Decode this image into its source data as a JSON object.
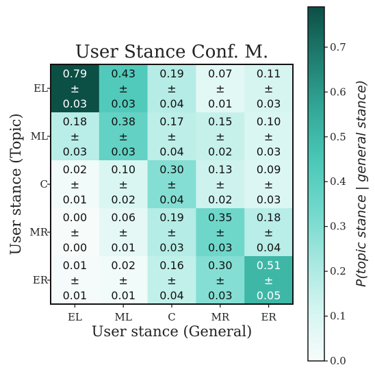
{
  "chart_data": {
    "type": "heatmap",
    "title": "User Stance Conf. M.",
    "xlabel": "User stance (General)",
    "ylabel": "User stance (Topic)",
    "x_categories": [
      "EL",
      "ML",
      "C",
      "MR",
      "ER"
    ],
    "y_categories": [
      "EL",
      "ML",
      "C",
      "MR",
      "ER"
    ],
    "values": [
      [
        0.79,
        0.43,
        0.19,
        0.07,
        0.11
      ],
      [
        0.18,
        0.38,
        0.17,
        0.15,
        0.1
      ],
      [
        0.02,
        0.1,
        0.3,
        0.13,
        0.09
      ],
      [
        0.0,
        0.06,
        0.19,
        0.35,
        0.18
      ],
      [
        0.01,
        0.02,
        0.16,
        0.3,
        0.51
      ]
    ],
    "errors": [
      [
        0.03,
        0.03,
        0.04,
        0.01,
        0.03
      ],
      [
        0.03,
        0.03,
        0.04,
        0.02,
        0.03
      ],
      [
        0.01,
        0.02,
        0.04,
        0.02,
        0.03
      ],
      [
        0.0,
        0.01,
        0.03,
        0.03,
        0.04
      ],
      [
        0.01,
        0.01,
        0.04,
        0.03,
        0.05
      ]
    ],
    "cell_labels": [
      [
        "0.79",
        "0.43",
        "0.19",
        "0.07",
        "0.11"
      ],
      [
        "0.18",
        "0.38",
        "0.17",
        "0.15",
        "0.10"
      ],
      [
        "0.02",
        "0.10",
        "0.30",
        "0.13",
        "0.09"
      ],
      [
        "0.00",
        "0.06",
        "0.19",
        "0.35",
        "0.18"
      ],
      [
        "0.01",
        "0.02",
        "0.16",
        "0.30",
        "0.51"
      ]
    ],
    "error_labels": [
      [
        "0.03",
        "0.03",
        "0.04",
        "0.01",
        "0.03"
      ],
      [
        "0.03",
        "0.03",
        "0.04",
        "0.02",
        "0.03"
      ],
      [
        "0.01",
        "0.02",
        "0.04",
        "0.02",
        "0.03"
      ],
      [
        "0.00",
        "0.01",
        "0.03",
        "0.03",
        "0.04"
      ],
      [
        "0.01",
        "0.01",
        "0.04",
        "0.03",
        "0.05"
      ]
    ],
    "pm_symbol": "±",
    "colorbar": {
      "label": "P(topic stance | general stance)",
      "range": [
        0.0,
        0.79
      ],
      "ticks": [
        0.0,
        0.1,
        0.2,
        0.3,
        0.4,
        0.5,
        0.6,
        0.7
      ],
      "tick_labels": [
        "0.0",
        "0.1",
        "0.2",
        "0.3",
        "0.4",
        "0.5",
        "0.6",
        "0.7"
      ],
      "colormap": [
        "#f7fcfb",
        "#d5f5f1",
        "#a6e8e0",
        "#72d9cc",
        "#4ac7b7",
        "#33a898",
        "#1f7f71",
        "#0c4f45"
      ]
    }
  }
}
